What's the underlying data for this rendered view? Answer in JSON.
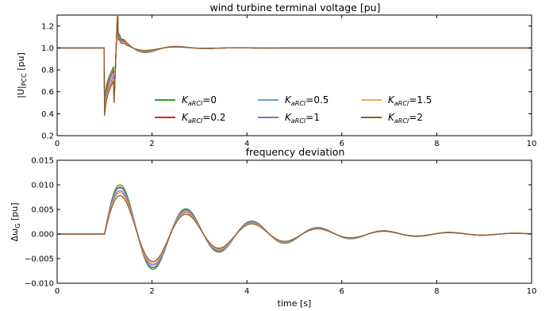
{
  "chart_data": [
    {
      "type": "line",
      "title": "wind turbine terminal voltage [pu]",
      "ylabel": "|U|",
      "ylabel_sub": "PCC",
      "ylabel_unit": " [pu]",
      "xlim": [
        0,
        10
      ],
      "ylim": [
        0.2,
        1.3
      ],
      "xticks": [
        "0",
        "2",
        "4",
        "6",
        "8",
        "10"
      ],
      "xtick_values": [
        0,
        2,
        4,
        6,
        8,
        10
      ],
      "yticks": [
        "0.2",
        "0.4",
        "0.6",
        "0.8",
        "1.0",
        "1.2"
      ],
      "ytick_values": [
        0.2,
        0.4,
        0.6,
        0.8,
        1.0,
        1.2
      ],
      "grid": false,
      "legend_placement": "lower-center",
      "legend_var": "K",
      "legend_sub": "aRCI",
      "series": [
        {
          "name": "=0",
          "color": "#2ca02c",
          "dip": 0.34,
          "overshoot": 0.23,
          "osc_amp": 0.11
        },
        {
          "name": "=0.2",
          "color": "#d62728",
          "dip": 0.37,
          "overshoot": 0.22,
          "osc_amp": 0.1
        },
        {
          "name": "=0.5",
          "color": "#6a9fd8",
          "dip": 0.4,
          "overshoot": 0.21,
          "osc_amp": 0.09
        },
        {
          "name": "=1",
          "color": "#9467bd",
          "dip": 0.43,
          "overshoot": 0.2,
          "osc_amp": 0.08
        },
        {
          "name": "=1.5",
          "color": "#ffa64d",
          "dip": 0.45,
          "overshoot": 0.19,
          "osc_amp": 0.07
        },
        {
          "name": "=2",
          "color": "#8c5a2b",
          "dip": 0.47,
          "overshoot": 0.18,
          "osc_amp": 0.06
        }
      ]
    },
    {
      "type": "line",
      "title": "frequency deviation",
      "ylabel": "Δω",
      "ylabel_sub": "G",
      "ylabel_unit": " [pu]",
      "xlabel": "time [s]",
      "xlim": [
        0,
        10
      ],
      "ylim": [
        -0.01,
        0.015
      ],
      "xticks": [
        "0",
        "2",
        "4",
        "6",
        "8",
        "10"
      ],
      "xtick_values": [
        0,
        2,
        4,
        6,
        8,
        10
      ],
      "yticks": [
        "−0.010",
        "−0.005",
        "0.000",
        "0.005",
        "0.010",
        "0.015"
      ],
      "ytick_values": [
        -0.01,
        -0.005,
        0.0,
        0.005,
        0.01,
        0.015
      ],
      "grid": false,
      "series": [
        {
          "name": "=0",
          "color": "#2ca02c",
          "peak": 0.0105,
          "freq": 0.72,
          "decay": 0.48
        },
        {
          "name": "=0.2",
          "color": "#d62728",
          "peak": 0.01,
          "freq": 0.72,
          "decay": 0.48
        },
        {
          "name": "=0.5",
          "color": "#6a9fd8",
          "peak": 0.0098,
          "freq": 0.72,
          "decay": 0.48
        },
        {
          "name": "=1",
          "color": "#9467bd",
          "peak": 0.0092,
          "freq": 0.72,
          "decay": 0.48
        },
        {
          "name": "=1.5",
          "color": "#ffa64d",
          "peak": 0.0088,
          "freq": 0.72,
          "decay": 0.48
        },
        {
          "name": "=2",
          "color": "#8c5a2b",
          "peak": 0.0082,
          "freq": 0.72,
          "decay": 0.48
        }
      ]
    }
  ]
}
